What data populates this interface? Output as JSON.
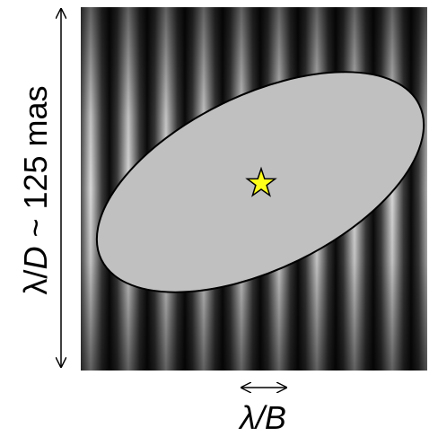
{
  "labels": {
    "vertical": [
      "λ/",
      "D",
      " ~ 125 mas"
    ],
    "horizontal": [
      "λ/",
      "B"
    ]
  }
}
